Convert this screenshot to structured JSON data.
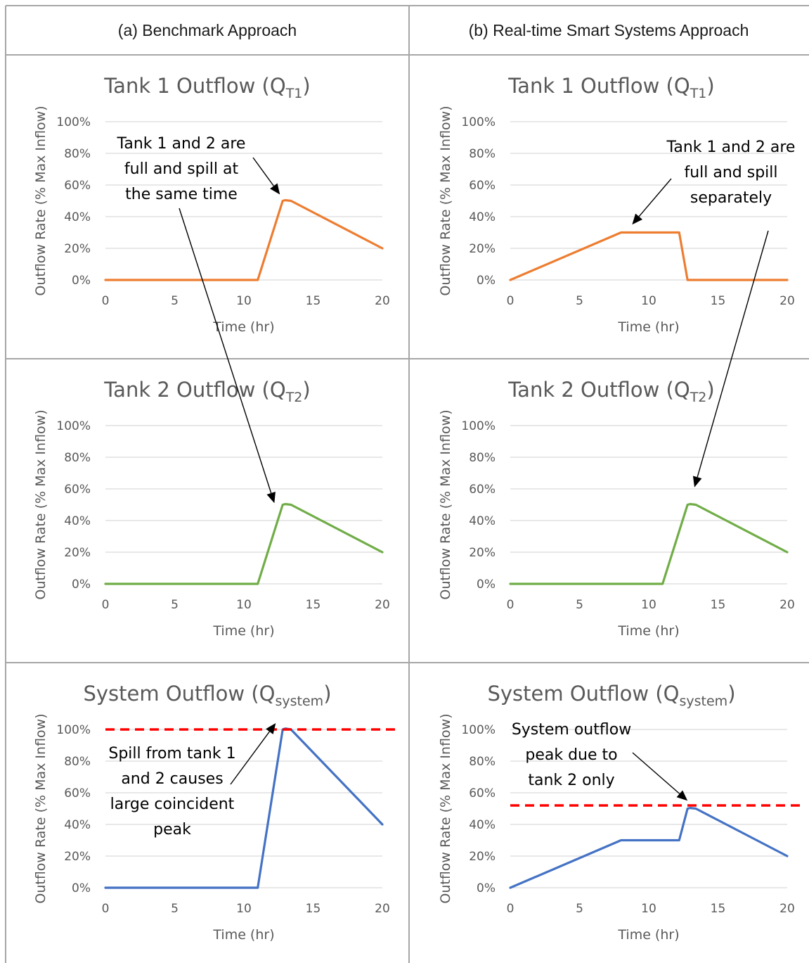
{
  "columns": [
    "(a) Benchmark Approach",
    "(b) Real-time Smart Systems Approach"
  ],
  "colors": {
    "tank1": "#ED7D31",
    "tank2": "#70AD47",
    "system": "#4472C4",
    "peak_line": "#FF0000",
    "grid": "#D9D9D9",
    "border": "#A6A6A6"
  },
  "chart_data": [
    {
      "id": "a1",
      "type": "line",
      "panel": "benchmark",
      "series_key": "tank1",
      "title_main": "Tank 1 Outflow (Q",
      "title_sub": "T1",
      "title_end": ")",
      "xlabel": "Time (hr)",
      "ylabel": "Outflow Rate (% Max Inflow)",
      "xlim": [
        0,
        20
      ],
      "ylim": [
        0,
        100
      ],
      "xticks": [
        0,
        5,
        10,
        15,
        20
      ],
      "yticks": [
        0,
        20,
        40,
        60,
        80,
        100
      ],
      "ytick_labels": [
        "0%",
        "20%",
        "40%",
        "60%",
        "80%",
        "100%"
      ],
      "grid": true,
      "series": [
        {
          "x": [
            0,
            11,
            12.8,
            13,
            13.4,
            20
          ],
          "y": [
            0,
            0,
            50,
            50.4,
            50,
            20
          ]
        }
      ],
      "annotation": {
        "lines": [
          "Tank 1 and 2 are",
          "full and spill at",
          "the same time"
        ]
      }
    },
    {
      "id": "b1",
      "type": "line",
      "panel": "smart",
      "series_key": "tank1",
      "title_main": "Tank 1 Outflow (Q",
      "title_sub": "T1",
      "title_end": ")",
      "xlabel": "Time (hr)",
      "ylabel": "Outflow Rate (% Max Inflow)",
      "xlim": [
        0,
        20
      ],
      "ylim": [
        0,
        100
      ],
      "xticks": [
        0,
        5,
        10,
        15,
        20
      ],
      "yticks": [
        0,
        20,
        40,
        60,
        80,
        100
      ],
      "ytick_labels": [
        "0%",
        "20%",
        "40%",
        "60%",
        "80%",
        "100%"
      ],
      "grid": true,
      "series": [
        {
          "x": [
            0,
            8,
            12.2,
            12.8,
            20
          ],
          "y": [
            0,
            30,
            30,
            0,
            0
          ]
        }
      ],
      "annotation": {
        "lines": [
          "Tank 1 and 2 are",
          "full and spill",
          "separately"
        ]
      }
    },
    {
      "id": "a2",
      "type": "line",
      "panel": "benchmark",
      "series_key": "tank2",
      "title_main": "Tank 2 Outflow (Q",
      "title_sub": "T2",
      "title_end": ")",
      "xlabel": "Time (hr)",
      "ylabel": "Outflow Rate (% Max Inflow)",
      "xlim": [
        0,
        20
      ],
      "ylim": [
        0,
        100
      ],
      "xticks": [
        0,
        5,
        10,
        15,
        20
      ],
      "yticks": [
        0,
        20,
        40,
        60,
        80,
        100
      ],
      "ytick_labels": [
        "0%",
        "20%",
        "40%",
        "60%",
        "80%",
        "100%"
      ],
      "grid": true,
      "series": [
        {
          "x": [
            0,
            11,
            12.8,
            13,
            13.4,
            20
          ],
          "y": [
            0,
            0,
            50,
            50.4,
            50,
            20
          ]
        }
      ]
    },
    {
      "id": "b2",
      "type": "line",
      "panel": "smart",
      "series_key": "tank2",
      "title_main": "Tank 2 Outflow (Q",
      "title_sub": "T2",
      "title_end": ")",
      "xlabel": "Time (hr)",
      "ylabel": "Outflow Rate (% Max Inflow)",
      "xlim": [
        0,
        20
      ],
      "ylim": [
        0,
        100
      ],
      "xticks": [
        0,
        5,
        10,
        15,
        20
      ],
      "yticks": [
        0,
        20,
        40,
        60,
        80,
        100
      ],
      "ytick_labels": [
        "0%",
        "20%",
        "40%",
        "60%",
        "80%",
        "100%"
      ],
      "grid": true,
      "series": [
        {
          "x": [
            0,
            11,
            12.8,
            13,
            13.4,
            20
          ],
          "y": [
            0,
            0,
            50,
            50.4,
            50,
            20
          ]
        }
      ]
    },
    {
      "id": "a3",
      "type": "line",
      "panel": "benchmark",
      "series_key": "system",
      "title_main": "System Outflow (Q",
      "title_sub": "system",
      "title_end": ")",
      "xlabel": "Time (hr)",
      "ylabel": "Outflow Rate (% Max Inflow)",
      "xlim": [
        0,
        20
      ],
      "ylim": [
        0,
        100
      ],
      "xticks": [
        0,
        5,
        10,
        15,
        20
      ],
      "yticks": [
        0,
        20,
        40,
        60,
        80,
        100
      ],
      "ytick_labels": [
        "0%",
        "20%",
        "40%",
        "60%",
        "80%",
        "100%"
      ],
      "grid": true,
      "series": [
        {
          "x": [
            0,
            11,
            12.8,
            13,
            13.4,
            20
          ],
          "y": [
            0,
            0,
            100,
            100.6,
            100,
            40
          ]
        }
      ],
      "peak_line": 100,
      "annotation": {
        "lines": [
          "Spill from tank 1",
          "and 2 causes",
          "large coincident",
          "peak"
        ]
      }
    },
    {
      "id": "b3",
      "type": "line",
      "panel": "smart",
      "series_key": "system",
      "title_main": "System Outflow (Q",
      "title_sub": "system",
      "title_end": ")",
      "xlabel": "Time (hr)",
      "ylabel": "Outflow Rate (% Max Inflow)",
      "xlim": [
        0,
        20
      ],
      "ylim": [
        0,
        100
      ],
      "xticks": [
        0,
        5,
        10,
        15,
        20
      ],
      "yticks": [
        0,
        20,
        40,
        60,
        80,
        100
      ],
      "ytick_labels": [
        "0%",
        "20%",
        "40%",
        "60%",
        "80%",
        "100%"
      ],
      "grid": true,
      "series": [
        {
          "x": [
            0,
            8,
            12.2,
            12.8,
            13,
            13.4,
            20
          ],
          "y": [
            0,
            30,
            30,
            50,
            50.4,
            50,
            20
          ]
        }
      ],
      "peak_line": 52,
      "annotation": {
        "lines": [
          "System outflow",
          "peak due to",
          "tank 2 only"
        ]
      }
    }
  ]
}
